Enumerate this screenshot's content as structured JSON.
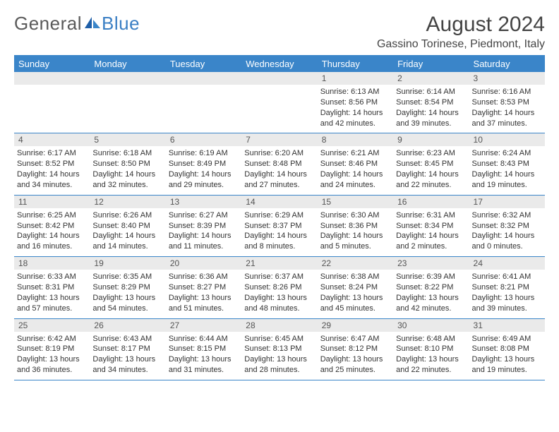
{
  "brand": {
    "text_general": "General",
    "text_blue": "Blue"
  },
  "title": "August 2024",
  "location": "Gassino Torinese, Piedmont, Italy",
  "colors": {
    "header_bg": "#3a85c9",
    "header_text": "#ffffff",
    "daynum_bg": "#eaeaea",
    "body_text": "#333333",
    "rule": "#3a85c9"
  },
  "day_headers": [
    "Sunday",
    "Monday",
    "Tuesday",
    "Wednesday",
    "Thursday",
    "Friday",
    "Saturday"
  ],
  "weeks": [
    [
      {
        "n": "",
        "sunrise": "",
        "sunset": "",
        "daylight": ""
      },
      {
        "n": "",
        "sunrise": "",
        "sunset": "",
        "daylight": ""
      },
      {
        "n": "",
        "sunrise": "",
        "sunset": "",
        "daylight": ""
      },
      {
        "n": "",
        "sunrise": "",
        "sunset": "",
        "daylight": ""
      },
      {
        "n": "1",
        "sunrise": "Sunrise: 6:13 AM",
        "sunset": "Sunset: 8:56 PM",
        "daylight": "Daylight: 14 hours and 42 minutes."
      },
      {
        "n": "2",
        "sunrise": "Sunrise: 6:14 AM",
        "sunset": "Sunset: 8:54 PM",
        "daylight": "Daylight: 14 hours and 39 minutes."
      },
      {
        "n": "3",
        "sunrise": "Sunrise: 6:16 AM",
        "sunset": "Sunset: 8:53 PM",
        "daylight": "Daylight: 14 hours and 37 minutes."
      }
    ],
    [
      {
        "n": "4",
        "sunrise": "Sunrise: 6:17 AM",
        "sunset": "Sunset: 8:52 PM",
        "daylight": "Daylight: 14 hours and 34 minutes."
      },
      {
        "n": "5",
        "sunrise": "Sunrise: 6:18 AM",
        "sunset": "Sunset: 8:50 PM",
        "daylight": "Daylight: 14 hours and 32 minutes."
      },
      {
        "n": "6",
        "sunrise": "Sunrise: 6:19 AM",
        "sunset": "Sunset: 8:49 PM",
        "daylight": "Daylight: 14 hours and 29 minutes."
      },
      {
        "n": "7",
        "sunrise": "Sunrise: 6:20 AM",
        "sunset": "Sunset: 8:48 PM",
        "daylight": "Daylight: 14 hours and 27 minutes."
      },
      {
        "n": "8",
        "sunrise": "Sunrise: 6:21 AM",
        "sunset": "Sunset: 8:46 PM",
        "daylight": "Daylight: 14 hours and 24 minutes."
      },
      {
        "n": "9",
        "sunrise": "Sunrise: 6:23 AM",
        "sunset": "Sunset: 8:45 PM",
        "daylight": "Daylight: 14 hours and 22 minutes."
      },
      {
        "n": "10",
        "sunrise": "Sunrise: 6:24 AM",
        "sunset": "Sunset: 8:43 PM",
        "daylight": "Daylight: 14 hours and 19 minutes."
      }
    ],
    [
      {
        "n": "11",
        "sunrise": "Sunrise: 6:25 AM",
        "sunset": "Sunset: 8:42 PM",
        "daylight": "Daylight: 14 hours and 16 minutes."
      },
      {
        "n": "12",
        "sunrise": "Sunrise: 6:26 AM",
        "sunset": "Sunset: 8:40 PM",
        "daylight": "Daylight: 14 hours and 14 minutes."
      },
      {
        "n": "13",
        "sunrise": "Sunrise: 6:27 AM",
        "sunset": "Sunset: 8:39 PM",
        "daylight": "Daylight: 14 hours and 11 minutes."
      },
      {
        "n": "14",
        "sunrise": "Sunrise: 6:29 AM",
        "sunset": "Sunset: 8:37 PM",
        "daylight": "Daylight: 14 hours and 8 minutes."
      },
      {
        "n": "15",
        "sunrise": "Sunrise: 6:30 AM",
        "sunset": "Sunset: 8:36 PM",
        "daylight": "Daylight: 14 hours and 5 minutes."
      },
      {
        "n": "16",
        "sunrise": "Sunrise: 6:31 AM",
        "sunset": "Sunset: 8:34 PM",
        "daylight": "Daylight: 14 hours and 2 minutes."
      },
      {
        "n": "17",
        "sunrise": "Sunrise: 6:32 AM",
        "sunset": "Sunset: 8:32 PM",
        "daylight": "Daylight: 14 hours and 0 minutes."
      }
    ],
    [
      {
        "n": "18",
        "sunrise": "Sunrise: 6:33 AM",
        "sunset": "Sunset: 8:31 PM",
        "daylight": "Daylight: 13 hours and 57 minutes."
      },
      {
        "n": "19",
        "sunrise": "Sunrise: 6:35 AM",
        "sunset": "Sunset: 8:29 PM",
        "daylight": "Daylight: 13 hours and 54 minutes."
      },
      {
        "n": "20",
        "sunrise": "Sunrise: 6:36 AM",
        "sunset": "Sunset: 8:27 PM",
        "daylight": "Daylight: 13 hours and 51 minutes."
      },
      {
        "n": "21",
        "sunrise": "Sunrise: 6:37 AM",
        "sunset": "Sunset: 8:26 PM",
        "daylight": "Daylight: 13 hours and 48 minutes."
      },
      {
        "n": "22",
        "sunrise": "Sunrise: 6:38 AM",
        "sunset": "Sunset: 8:24 PM",
        "daylight": "Daylight: 13 hours and 45 minutes."
      },
      {
        "n": "23",
        "sunrise": "Sunrise: 6:39 AM",
        "sunset": "Sunset: 8:22 PM",
        "daylight": "Daylight: 13 hours and 42 minutes."
      },
      {
        "n": "24",
        "sunrise": "Sunrise: 6:41 AM",
        "sunset": "Sunset: 8:21 PM",
        "daylight": "Daylight: 13 hours and 39 minutes."
      }
    ],
    [
      {
        "n": "25",
        "sunrise": "Sunrise: 6:42 AM",
        "sunset": "Sunset: 8:19 PM",
        "daylight": "Daylight: 13 hours and 36 minutes."
      },
      {
        "n": "26",
        "sunrise": "Sunrise: 6:43 AM",
        "sunset": "Sunset: 8:17 PM",
        "daylight": "Daylight: 13 hours and 34 minutes."
      },
      {
        "n": "27",
        "sunrise": "Sunrise: 6:44 AM",
        "sunset": "Sunset: 8:15 PM",
        "daylight": "Daylight: 13 hours and 31 minutes."
      },
      {
        "n": "28",
        "sunrise": "Sunrise: 6:45 AM",
        "sunset": "Sunset: 8:13 PM",
        "daylight": "Daylight: 13 hours and 28 minutes."
      },
      {
        "n": "29",
        "sunrise": "Sunrise: 6:47 AM",
        "sunset": "Sunset: 8:12 PM",
        "daylight": "Daylight: 13 hours and 25 minutes."
      },
      {
        "n": "30",
        "sunrise": "Sunrise: 6:48 AM",
        "sunset": "Sunset: 8:10 PM",
        "daylight": "Daylight: 13 hours and 22 minutes."
      },
      {
        "n": "31",
        "sunrise": "Sunrise: 6:49 AM",
        "sunset": "Sunset: 8:08 PM",
        "daylight": "Daylight: 13 hours and 19 minutes."
      }
    ]
  ]
}
